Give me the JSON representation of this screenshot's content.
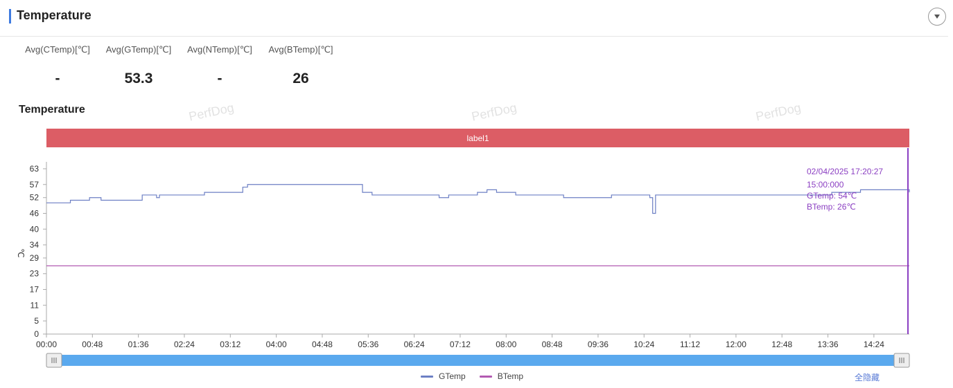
{
  "header": {
    "title": "Temperature"
  },
  "stats": [
    {
      "label": "Avg(CTemp)[℃]",
      "value": "-"
    },
    {
      "label": "Avg(GTemp)[℃]",
      "value": "53.3"
    },
    {
      "label": "Avg(NTemp)[℃]",
      "value": "-"
    },
    {
      "label": "Avg(BTemp)[℃]",
      "value": "26"
    }
  ],
  "watermark_text": "PerfDog",
  "chart_data": {
    "type": "line",
    "title": "Temperature",
    "ylabel": "℃",
    "ylim": [
      0,
      63
    ],
    "yticks": [
      0,
      5,
      11,
      17,
      23,
      29,
      34,
      40,
      46,
      52,
      57,
      63
    ],
    "xticks": [
      "00:00",
      "00:48",
      "01:36",
      "02:24",
      "03:12",
      "04:00",
      "04:48",
      "05:36",
      "06:24",
      "07:12",
      "08:00",
      "08:48",
      "09:36",
      "10:24",
      "11:12",
      "12:00",
      "12:48",
      "13:36",
      "14:24"
    ],
    "xlim_minutes": [
      0,
      901
    ],
    "label_band": "label1",
    "series": [
      {
        "name": "GTemp",
        "color": "#6c7fc4",
        "points": [
          [
            0,
            50
          ],
          [
            10,
            50
          ],
          [
            20,
            50
          ],
          [
            25,
            51
          ],
          [
            40,
            51
          ],
          [
            45,
            52
          ],
          [
            55,
            52
          ],
          [
            57,
            51
          ],
          [
            95,
            51
          ],
          [
            100,
            53
          ],
          [
            112,
            53
          ],
          [
            115,
            52
          ],
          [
            118,
            53
          ],
          [
            160,
            53
          ],
          [
            165,
            54
          ],
          [
            185,
            54
          ],
          [
            200,
            54
          ],
          [
            205,
            56
          ],
          [
            210,
            57
          ],
          [
            240,
            57
          ],
          [
            250,
            57
          ],
          [
            300,
            57
          ],
          [
            322,
            57
          ],
          [
            330,
            54
          ],
          [
            340,
            53
          ],
          [
            370,
            53
          ],
          [
            390,
            53
          ],
          [
            410,
            52
          ],
          [
            420,
            53
          ],
          [
            440,
            53
          ],
          [
            450,
            54
          ],
          [
            460,
            55
          ],
          [
            470,
            54
          ],
          [
            490,
            53
          ],
          [
            520,
            53
          ],
          [
            540,
            52
          ],
          [
            580,
            52
          ],
          [
            590,
            53
          ],
          [
            620,
            53
          ],
          [
            630,
            52
          ],
          [
            633,
            46
          ],
          [
            636,
            53
          ],
          [
            650,
            53
          ],
          [
            700,
            53
          ],
          [
            780,
            53
          ],
          [
            800,
            53
          ],
          [
            820,
            54
          ],
          [
            840,
            54
          ],
          [
            850,
            55
          ],
          [
            870,
            55
          ],
          [
            890,
            55
          ],
          [
            901,
            54
          ]
        ]
      },
      {
        "name": "BTemp",
        "color": "#b25ab1",
        "points": [
          [
            0,
            26
          ],
          [
            901,
            26
          ]
        ]
      }
    ],
    "tooltip": {
      "time": "02/04/2025 17:20:27",
      "elapsed": "15:00:000",
      "lines": [
        "GTemp: 54℃",
        "BTemp: 26℃"
      ]
    },
    "legend": [
      "GTemp",
      "BTemp"
    ],
    "hide_all_label": "全隐藏"
  }
}
